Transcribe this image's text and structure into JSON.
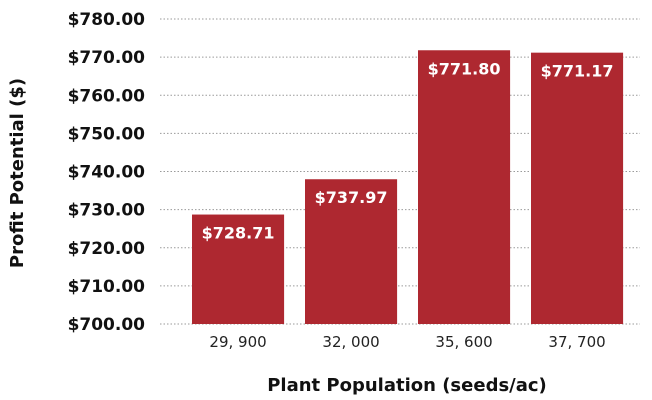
{
  "chart_data": {
    "type": "bar",
    "categories": [
      "29, 900",
      "32, 000",
      "35, 600",
      "37, 700"
    ],
    "values": [
      728.71,
      737.97,
      771.8,
      771.17
    ],
    "data_labels": [
      "$728.71",
      "$737.97",
      "$771.80",
      "$771.17"
    ],
    "xlabel": "Plant Population (seeds/ac)",
    "ylabel": "Profit Potential ($)",
    "ylim": [
      700,
      780
    ],
    "yticks": [
      700,
      710,
      720,
      730,
      740,
      750,
      760,
      770,
      780
    ],
    "ytick_labels": [
      "$700.00",
      "$710.00",
      "$720.00",
      "$730.00",
      "$740.00",
      "$750.00",
      "$760.00",
      "$770.00",
      "$780.00"
    ],
    "grid": true,
    "bar_color": "#ae2830"
  }
}
